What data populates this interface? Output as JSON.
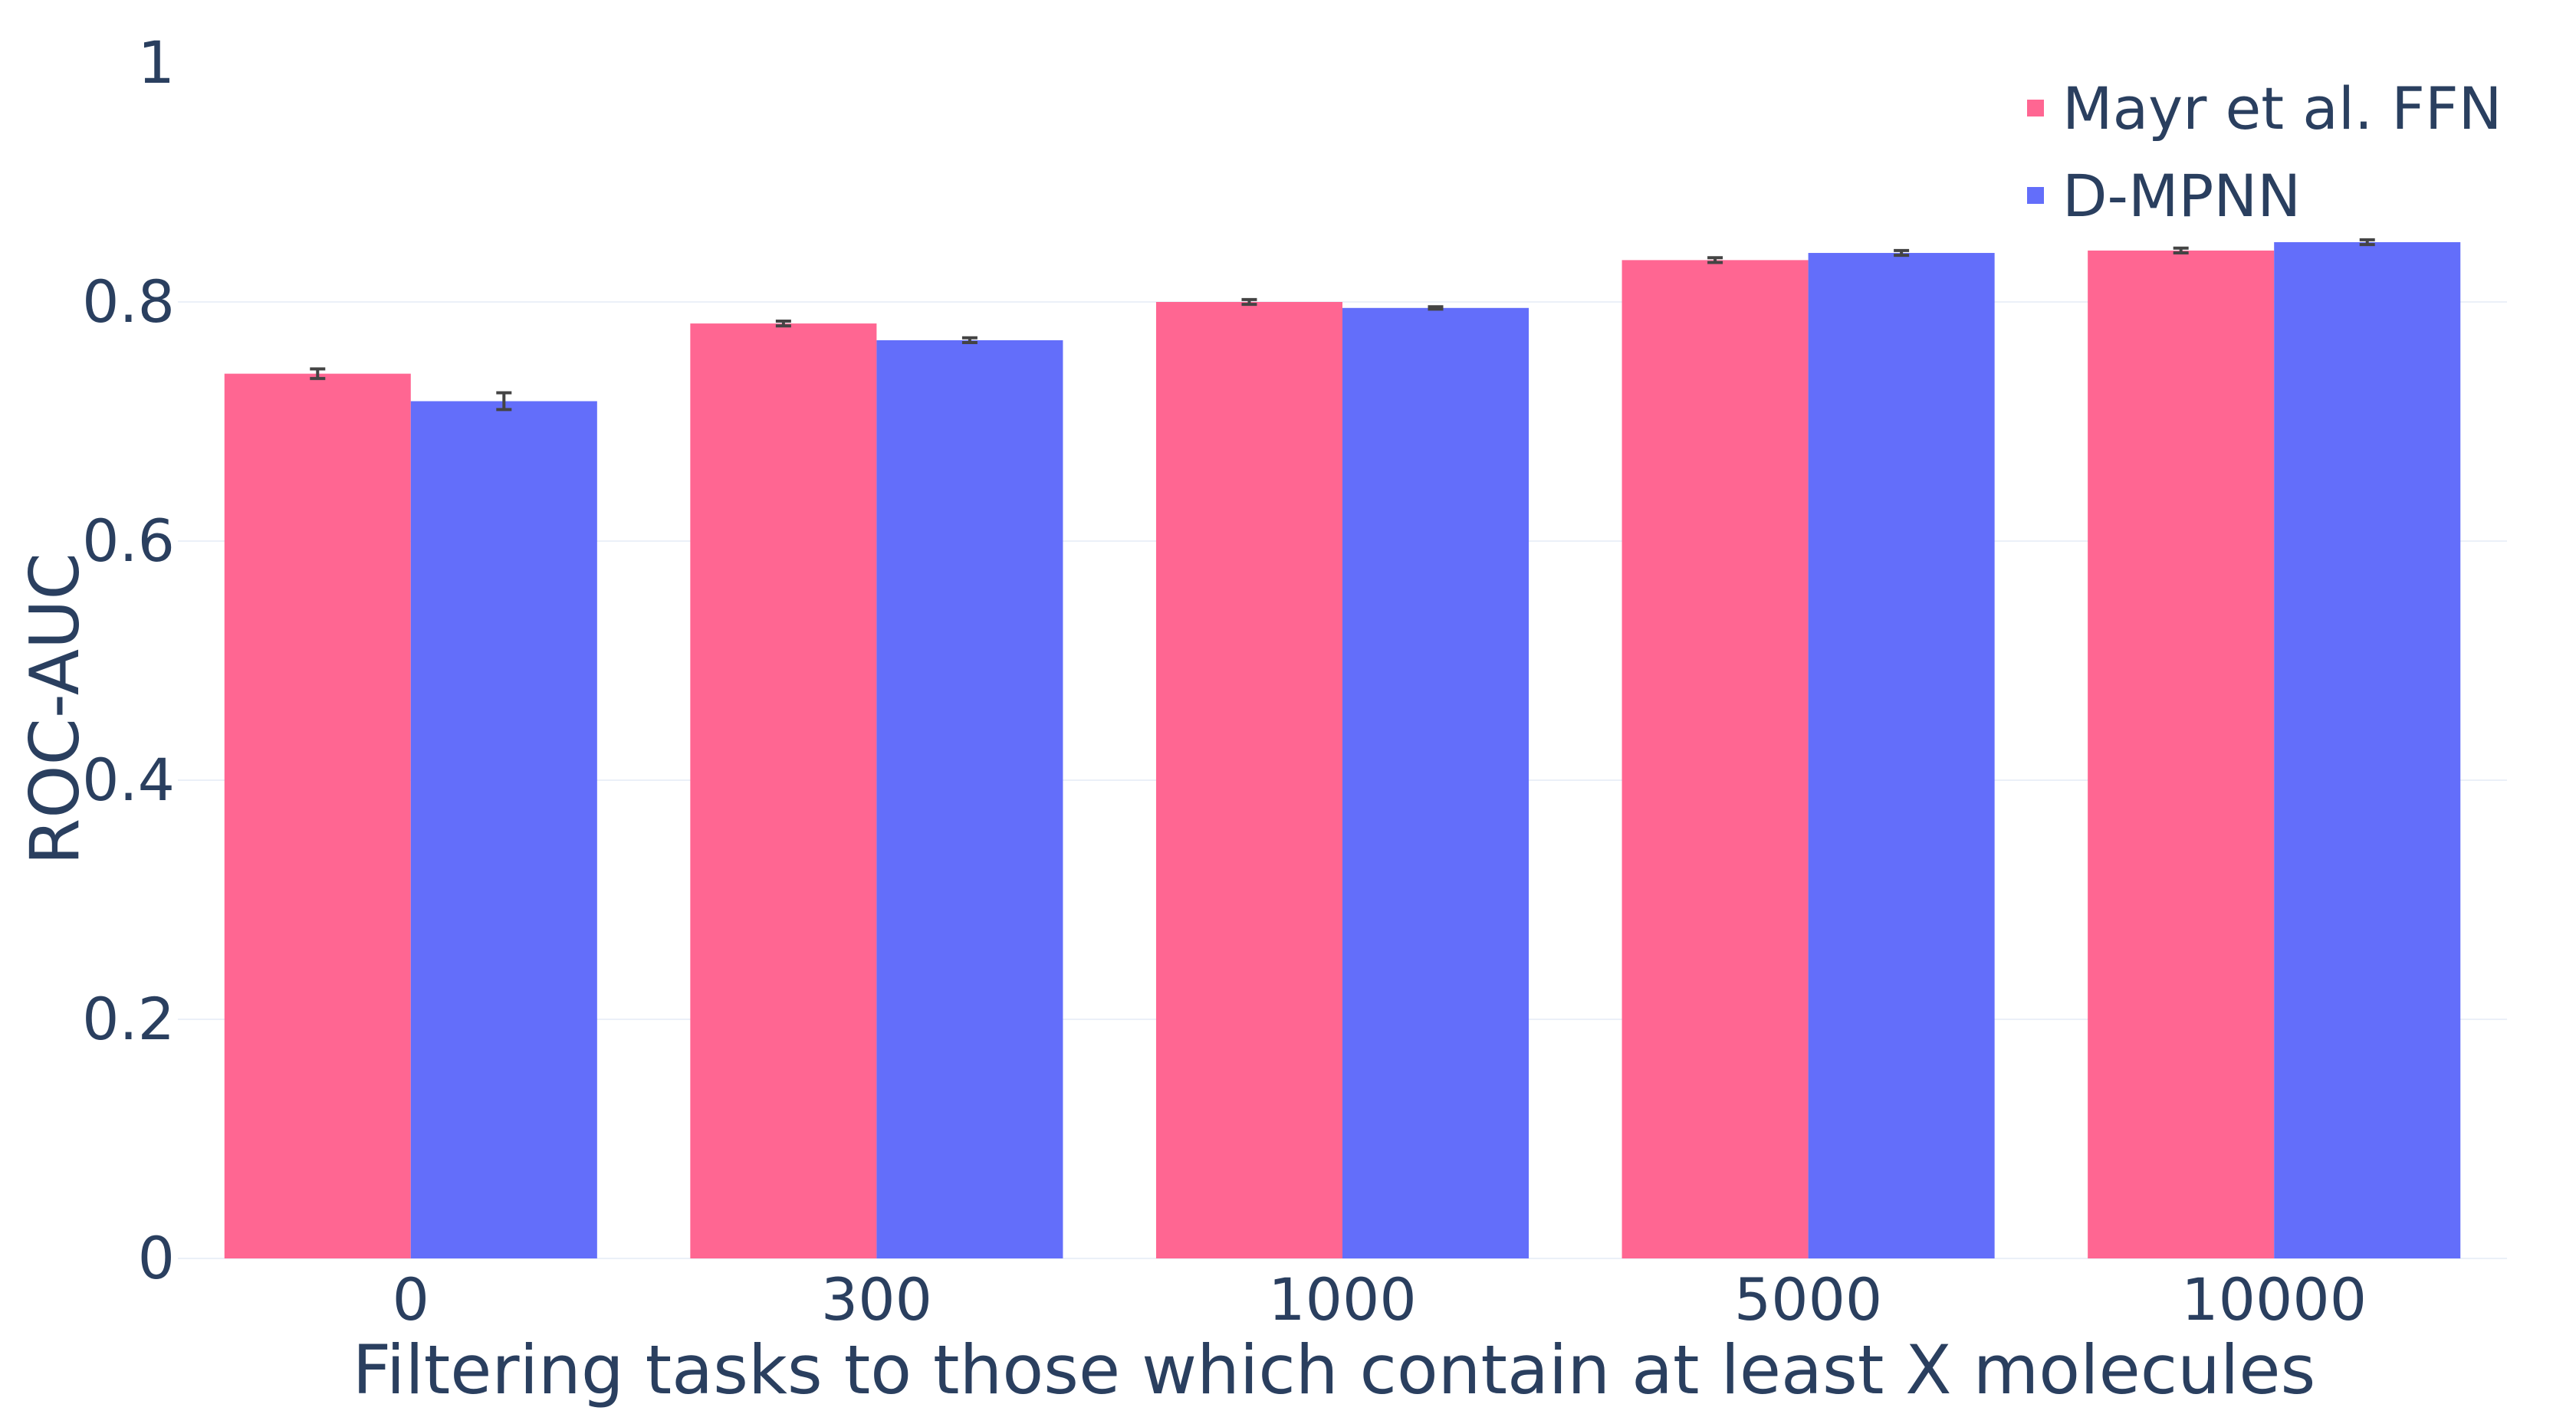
{
  "chart_data": {
    "type": "bar",
    "categories": [
      "0",
      "300",
      "1000",
      "5000",
      "10000"
    ],
    "series": [
      {
        "name": "Mayr et al. FFN",
        "color": "#ff6692",
        "values": [
          0.74,
          0.782,
          0.8,
          0.835,
          0.843
        ],
        "error": [
          0.004,
          0.002,
          0.002,
          0.002,
          0.002
        ]
      },
      {
        "name": "D-MPNN",
        "color": "#636efa",
        "values": [
          0.717,
          0.768,
          0.795,
          0.841,
          0.85
        ],
        "error": [
          0.007,
          0.002,
          0.001,
          0.002,
          0.002
        ]
      }
    ],
    "xlabel": "Filtering tasks to those which contain at least X molecules",
    "ylabel": "ROC-AUC",
    "ylim": [
      0,
      1
    ],
    "yticks": [
      0,
      0.2,
      0.4,
      0.6,
      0.8,
      1
    ],
    "ytick_labels": [
      "0",
      "0.2",
      "0.4",
      "0.6",
      "0.8",
      "1"
    ],
    "grid": true,
    "legend_position": "top-right",
    "text_color": "#2a3f5f",
    "grid_color": "#ebf0f8",
    "error_bar_color": "#444444"
  }
}
